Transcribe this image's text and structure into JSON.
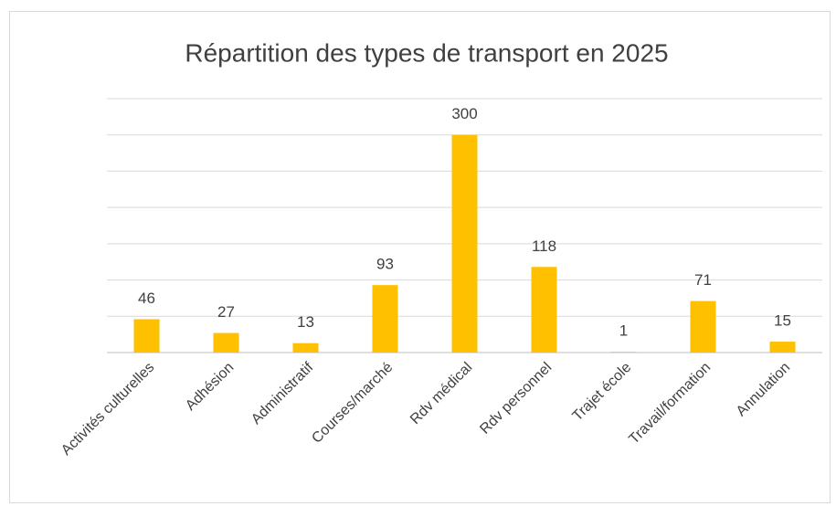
{
  "chart_data": {
    "type": "bar",
    "title": "Répartition des types de transport en 2025",
    "categories": [
      "Activités culturelles",
      "Adhésion",
      "Administratif",
      "Courses/marché",
      "Rdv médical",
      "Rdv personnel",
      "Trajet école",
      "Travail/formation",
      "Annulation"
    ],
    "values": [
      46,
      27,
      13,
      93,
      300,
      118,
      1,
      71,
      15
    ],
    "color": "#ffc000",
    "ylim": [
      0,
      350
    ],
    "yticks": [
      0,
      50,
      100,
      150,
      200,
      250,
      300,
      350
    ],
    "grid": true
  }
}
